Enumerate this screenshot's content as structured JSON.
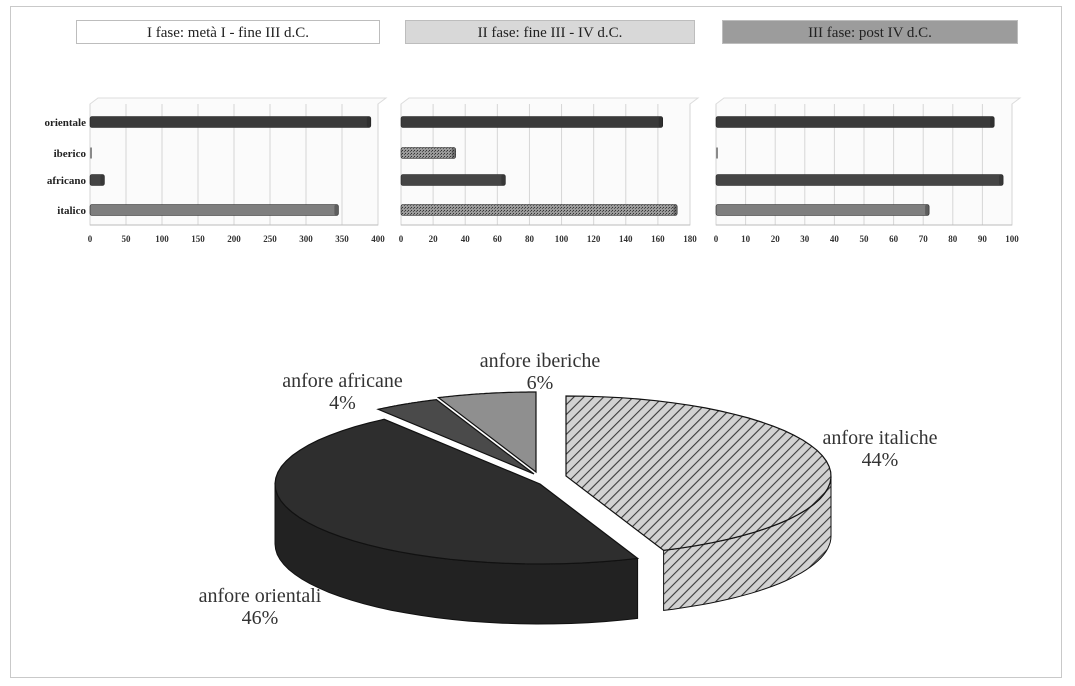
{
  "phases": [
    {
      "label": "I fase: metà I - fine III d.C.",
      "bg": "#ffffff"
    },
    {
      "label": "II fase: fine III - IV d.C.",
      "bg": "#d8d8d8"
    },
    {
      "label": "III fase: post IV d.C.",
      "bg": "#9c9c9c"
    }
  ],
  "chart_data": [
    {
      "type": "bar",
      "orientation": "horizontal",
      "categories": [
        "orientale",
        "iberico",
        "africano",
        "italico"
      ],
      "values": [
        390,
        0,
        20,
        345
      ],
      "xlim": [
        0,
        400
      ],
      "xticks": [
        "0",
        "50",
        "100",
        "150",
        "200",
        "250",
        "300",
        "350",
        "400"
      ],
      "grid": true
    },
    {
      "type": "bar",
      "orientation": "horizontal",
      "categories": [
        "orientale",
        "iberico",
        "africano",
        "italico"
      ],
      "values": [
        163,
        34,
        65,
        172
      ],
      "xlim": [
        0,
        180
      ],
      "xticks": [
        "0",
        "20",
        "40",
        "60",
        "80",
        "100",
        "120",
        "140",
        "160",
        "180"
      ],
      "grid": true
    },
    {
      "type": "bar",
      "orientation": "horizontal",
      "categories": [
        "orientale",
        "iberico",
        "africano",
        "italico"
      ],
      "values": [
        94,
        0,
        97,
        72
      ],
      "xlim": [
        0,
        100
      ],
      "xticks": [
        "0",
        "10",
        "20",
        "30",
        "40",
        "50",
        "60",
        "70",
        "80",
        "90",
        "100"
      ],
      "grid": true
    },
    {
      "type": "pie",
      "style": "3d",
      "slices": [
        {
          "name": "anfore italiche",
          "pct_label": "44%",
          "value": 44
        },
        {
          "name": "anfore orientali",
          "pct_label": "46%",
          "value": 46
        },
        {
          "name": "anfore africane",
          "pct_label": "4%",
          "value": 4
        },
        {
          "name": "anfore iberiche",
          "pct_label": "6%",
          "value": 6
        }
      ]
    }
  ],
  "colors": {
    "orientale": "#3a3a3a",
    "iberico": "#8a8a8a",
    "africano": "#454545",
    "italico": "#7e7e7e",
    "pie_italiche": "#9a9a9a",
    "pie_orientali": "#2e2e2e",
    "pie_africane": "#4a4a4a",
    "pie_iberiche": "#8f8f8f"
  }
}
